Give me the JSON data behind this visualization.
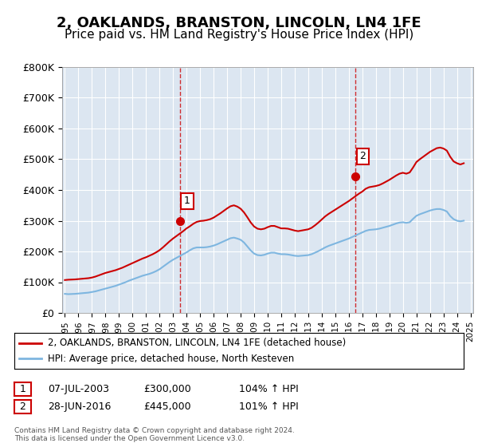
{
  "title": "2, OAKLANDS, BRANSTON, LINCOLN, LN4 1FE",
  "subtitle": "Price paid vs. HM Land Registry's House Price Index (HPI)",
  "title_fontsize": 13,
  "subtitle_fontsize": 11,
  "background_color": "#ffffff",
  "plot_bg_color": "#dce6f1",
  "grid_color": "#ffffff",
  "red_line_color": "#cc0000",
  "blue_line_color": "#7eb6e0",
  "dashed_line_color": "#cc0000",
  "ylabel_color": "#000000",
  "ylim": [
    0,
    800000
  ],
  "yticks": [
    0,
    100000,
    200000,
    300000,
    400000,
    500000,
    600000,
    700000,
    800000
  ],
  "ytick_labels": [
    "£0",
    "£100K",
    "£200K",
    "£300K",
    "£400K",
    "£500K",
    "£600K",
    "£700K",
    "£800K"
  ],
  "xtick_years": [
    1995,
    1996,
    1997,
    1998,
    1999,
    2000,
    2001,
    2002,
    2003,
    2004,
    2005,
    2006,
    2007,
    2008,
    2009,
    2010,
    2011,
    2012,
    2013,
    2014,
    2015,
    2016,
    2017,
    2018,
    2019,
    2020,
    2021,
    2022,
    2023,
    2024,
    2025
  ],
  "sale1_x": 2003.52,
  "sale1_y": 300000,
  "sale1_label": "1",
  "sale2_x": 2016.49,
  "sale2_y": 445000,
  "sale2_label": "2",
  "legend_line1": "2, OAKLANDS, BRANSTON, LINCOLN, LN4 1FE (detached house)",
  "legend_line2": "HPI: Average price, detached house, North Kesteven",
  "table_row1": [
    "1",
    "07-JUL-2003",
    "£300,000",
    "104% ↑ HPI"
  ],
  "table_row2": [
    "2",
    "28-JUN-2016",
    "£445,000",
    "101% ↑ HPI"
  ],
  "footer1": "Contains HM Land Registry data © Crown copyright and database right 2024.",
  "footer2": "This data is licensed under the Open Government Licence v3.0.",
  "hpi_data_x": [
    1995.0,
    1995.25,
    1995.5,
    1995.75,
    1996.0,
    1996.25,
    1996.5,
    1996.75,
    1997.0,
    1997.25,
    1997.5,
    1997.75,
    1998.0,
    1998.25,
    1998.5,
    1998.75,
    1999.0,
    1999.25,
    1999.5,
    1999.75,
    2000.0,
    2000.25,
    2000.5,
    2000.75,
    2001.0,
    2001.25,
    2001.5,
    2001.75,
    2002.0,
    2002.25,
    2002.5,
    2002.75,
    2003.0,
    2003.25,
    2003.5,
    2003.75,
    2004.0,
    2004.25,
    2004.5,
    2004.75,
    2005.0,
    2005.25,
    2005.5,
    2005.75,
    2006.0,
    2006.25,
    2006.5,
    2006.75,
    2007.0,
    2007.25,
    2007.5,
    2007.75,
    2008.0,
    2008.25,
    2008.5,
    2008.75,
    2009.0,
    2009.25,
    2009.5,
    2009.75,
    2010.0,
    2010.25,
    2010.5,
    2010.75,
    2011.0,
    2011.25,
    2011.5,
    2011.75,
    2012.0,
    2012.25,
    2012.5,
    2012.75,
    2013.0,
    2013.25,
    2013.5,
    2013.75,
    2014.0,
    2014.25,
    2014.5,
    2014.75,
    2015.0,
    2015.25,
    2015.5,
    2015.75,
    2016.0,
    2016.25,
    2016.5,
    2016.75,
    2017.0,
    2017.25,
    2017.5,
    2017.75,
    2018.0,
    2018.25,
    2018.5,
    2018.75,
    2019.0,
    2019.25,
    2019.5,
    2019.75,
    2020.0,
    2020.25,
    2020.5,
    2020.75,
    2021.0,
    2021.25,
    2021.5,
    2021.75,
    2022.0,
    2022.25,
    2022.5,
    2022.75,
    2023.0,
    2023.25,
    2023.5,
    2023.75,
    2024.0,
    2024.25,
    2024.5
  ],
  "hpi_data_y": [
    62000,
    61000,
    61500,
    62000,
    63000,
    64000,
    65000,
    66000,
    68000,
    70000,
    73000,
    76000,
    79000,
    82000,
    85000,
    88000,
    92000,
    96000,
    100000,
    105000,
    109000,
    113000,
    117000,
    121000,
    124000,
    127000,
    131000,
    136000,
    142000,
    150000,
    158000,
    166000,
    173000,
    179000,
    185000,
    191000,
    197000,
    204000,
    210000,
    213000,
    213000,
    213000,
    214000,
    216000,
    219000,
    223000,
    228000,
    233000,
    238000,
    243000,
    245000,
    242000,
    238000,
    229000,
    216000,
    203000,
    193000,
    188000,
    187000,
    189000,
    193000,
    196000,
    196000,
    193000,
    191000,
    191000,
    190000,
    188000,
    186000,
    185000,
    186000,
    187000,
    188000,
    191000,
    196000,
    201000,
    207000,
    213000,
    218000,
    222000,
    226000,
    230000,
    234000,
    238000,
    242000,
    247000,
    252000,
    257000,
    262000,
    267000,
    270000,
    271000,
    272000,
    274000,
    277000,
    280000,
    283000,
    287000,
    291000,
    294000,
    295000,
    293000,
    295000,
    306000,
    316000,
    321000,
    325000,
    329000,
    333000,
    336000,
    338000,
    338000,
    335000,
    330000,
    315000,
    305000,
    300000,
    298000,
    300000
  ],
  "price_data_x": [
    1995.0,
    1995.25,
    1995.5,
    1995.75,
    1996.0,
    1996.25,
    1996.5,
    1996.75,
    1997.0,
    1997.25,
    1997.5,
    1997.75,
    1998.0,
    1998.25,
    1998.5,
    1998.75,
    1999.0,
    1999.25,
    1999.5,
    1999.75,
    2000.0,
    2000.25,
    2000.5,
    2000.75,
    2001.0,
    2001.25,
    2001.5,
    2001.75,
    2002.0,
    2002.25,
    2002.5,
    2002.75,
    2003.0,
    2003.25,
    2003.5,
    2003.75,
    2004.0,
    2004.25,
    2004.5,
    2004.75,
    2005.0,
    2005.25,
    2005.5,
    2005.75,
    2006.0,
    2006.25,
    2006.5,
    2006.75,
    2007.0,
    2007.25,
    2007.5,
    2007.75,
    2008.0,
    2008.25,
    2008.5,
    2008.75,
    2009.0,
    2009.25,
    2009.5,
    2009.75,
    2010.0,
    2010.25,
    2010.5,
    2010.75,
    2011.0,
    2011.25,
    2011.5,
    2011.75,
    2012.0,
    2012.25,
    2012.5,
    2012.75,
    2013.0,
    2013.25,
    2013.5,
    2013.75,
    2014.0,
    2014.25,
    2014.5,
    2014.75,
    2015.0,
    2015.25,
    2015.5,
    2015.75,
    2016.0,
    2016.25,
    2016.5,
    2016.75,
    2017.0,
    2017.25,
    2017.5,
    2017.75,
    2018.0,
    2018.25,
    2018.5,
    2018.75,
    2019.0,
    2019.25,
    2019.5,
    2019.75,
    2020.0,
    2020.25,
    2020.5,
    2020.75,
    2021.0,
    2021.25,
    2021.5,
    2021.75,
    2022.0,
    2022.25,
    2022.5,
    2022.75,
    2023.0,
    2023.25,
    2023.5,
    2023.75,
    2024.0,
    2024.25,
    2024.5
  ],
  "price_data_y": [
    107000,
    108000,
    108500,
    109000,
    110000,
    111000,
    112000,
    113000,
    115000,
    118000,
    122000,
    126000,
    130000,
    133000,
    136000,
    139000,
    143000,
    147000,
    152000,
    157000,
    162000,
    167000,
    172000,
    177000,
    181000,
    186000,
    191000,
    197000,
    204000,
    213000,
    223000,
    233000,
    242000,
    250000,
    258000,
    266000,
    275000,
    282000,
    290000,
    296000,
    299000,
    300000,
    302000,
    305000,
    310000,
    317000,
    324000,
    332000,
    340000,
    347000,
    350000,
    346000,
    339000,
    327000,
    311000,
    294000,
    281000,
    274000,
    272000,
    274000,
    279000,
    283000,
    283000,
    279000,
    275000,
    275000,
    274000,
    271000,
    268000,
    266000,
    268000,
    270000,
    272000,
    277000,
    285000,
    294000,
    304000,
    314000,
    322000,
    329000,
    336000,
    343000,
    350000,
    357000,
    364000,
    372000,
    380000,
    388000,
    395000,
    404000,
    409000,
    411000,
    413000,
    416000,
    421000,
    427000,
    433000,
    440000,
    447000,
    453000,
    456000,
    453000,
    457000,
    473000,
    491000,
    500000,
    508000,
    516000,
    524000,
    530000,
    536000,
    538000,
    535000,
    528000,
    508000,
    493000,
    487000,
    483000,
    487000
  ]
}
